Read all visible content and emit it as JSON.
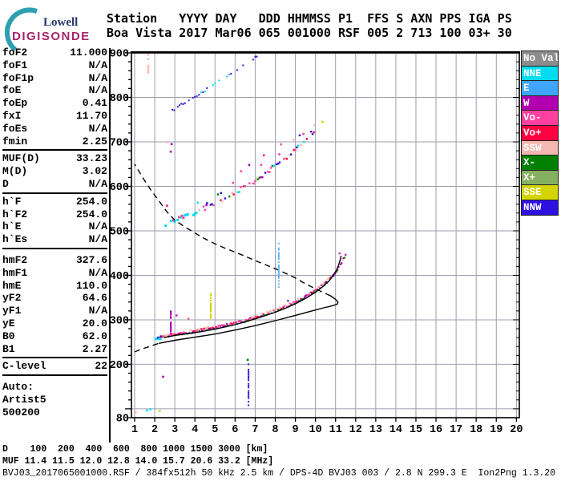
{
  "logo": {
    "line1": "Lowell",
    "line2": "DIGISONDE",
    "arc_color": "#2e9fb0"
  },
  "header": {
    "line1": "Station   YYYY DAY   DDD HHMMSS P1  FFS S AXN PPS IGA PS",
    "line2": "Boa Vista 2017 Mar06 065 001000 RSF 005 2 713 100 03+ 30"
  },
  "panel": {
    "groups": [
      {
        "rows": [
          [
            "foF2",
            "11.000"
          ],
          [
            "foF1",
            "N/A"
          ],
          [
            "foF1p",
            "N/A"
          ],
          [
            "foE",
            "N/A"
          ],
          [
            "foEp",
            "0.41"
          ],
          [
            "fxI",
            "11.70"
          ],
          [
            "foEs",
            "N/A"
          ],
          [
            "fmin",
            "2.25"
          ]
        ]
      },
      {
        "rows": [
          [
            "MUF(D)",
            "33.23"
          ],
          [
            "M(D)",
            "3.02"
          ],
          [
            "D",
            "N/A"
          ]
        ]
      },
      {
        "rows": [
          [
            "h`F",
            "254.0"
          ],
          [
            "h`F2",
            "254.0"
          ],
          [
            "h`E",
            "N/A"
          ],
          [
            "h`Es",
            "N/A"
          ]
        ]
      },
      {
        "rows": [
          [
            "hmF2",
            "327.6"
          ],
          [
            "hmF1",
            "N/A"
          ],
          [
            "hmE",
            "110.0"
          ],
          [
            "yF2",
            "64.6"
          ],
          [
            "yF1",
            "N/A"
          ],
          [
            "yE",
            "20.0"
          ],
          [
            "B0",
            "62.0"
          ],
          [
            "B1",
            "2.27"
          ]
        ]
      },
      {
        "rows": [
          [
            "C-level",
            "22"
          ]
        ]
      }
    ],
    "footer": [
      "Auto:",
      "Artist5",
      "500200"
    ]
  },
  "legend": {
    "items": [
      {
        "label": "No Val",
        "color": "#8c8c8c"
      },
      {
        "label": "NNE",
        "color": "#00dcf0"
      },
      {
        "label": "E",
        "color": "#3fa5ff"
      },
      {
        "label": "W",
        "color": "#b000b0"
      },
      {
        "label": "Vo-",
        "color": "#ff40a0"
      },
      {
        "label": "Vo+",
        "color": "#ff0040"
      },
      {
        "label": "SSW",
        "color": "#f4b8b0"
      },
      {
        "label": "X-",
        "color": "#008000"
      },
      {
        "label": "X+",
        "color": "#85b060"
      },
      {
        "label": "SSE",
        "color": "#d4d400"
      },
      {
        "label": "NNW",
        "color": "#3010e0"
      }
    ]
  },
  "bottom": {
    "d_row": "D    100  200  400  600  800 1000 1500 3000 [km]",
    "muf_row": "MUF 11.4 11.5 12.0 12.8 14.0 15.7 20.6 33.2 [MHz]",
    "file_row": "BVJ03_2017065001000.RSF / 384fx512h 50 kHz 2.5 km / DPS-4D BVJ03 003 / 2.8 N 299.3 E  Ion2Png 1.3.20"
  },
  "chart_data": {
    "type": "scatter",
    "title": "Digisonde ionogram Boa Vista 2017-03-06 00:10:00",
    "xlabel": "[MHz]",
    "ylabel": "[km]",
    "xlim": [
      0.84,
      20.16
    ],
    "ylim": [
      80,
      900
    ],
    "grid_color": "#9e9eae",
    "x_ticks": [
      1,
      2,
      3,
      4,
      5,
      6,
      7,
      8,
      9,
      10,
      11,
      12,
      13,
      14,
      15,
      16,
      17,
      18,
      19,
      20
    ],
    "y_gridlines": [
      100,
      200,
      300,
      400,
      500,
      600,
      700,
      800,
      900
    ],
    "y_labels": [
      900,
      800,
      700,
      600,
      500,
      400,
      300,
      200,
      80
    ],
    "y_minor_step": 20,
    "traces": [
      {
        "name": "f-trace-1st-hop",
        "seed": 11,
        "step": 1.1,
        "size": 2.2,
        "jitter": 3.5,
        "gap": 0.06,
        "spray": 0.012,
        "segments": [
          {
            "to": 2.35,
            "palette": [
              "#00dcf0",
              "#00dcf0",
              "#3010e0"
            ],
            "size": 3
          },
          {
            "to": 10.9,
            "palette": [
              "#ff40a0",
              "#ff0040",
              "#b000b0",
              "#ff40a0",
              "#ff0040"
            ],
            "top": "#f4b8b0",
            "bottom": [
              "#008000",
              "#008000",
              "#3010e0"
            ]
          },
          {
            "to": 11.65,
            "palette": [
              "#b000b0",
              "#ff40a0",
              "#b000b0"
            ],
            "top": "#f4b8b0",
            "bottom": [
              "#008000"
            ]
          }
        ],
        "points": [
          [
            2.05,
            257
          ],
          [
            2.5,
            262
          ],
          [
            3,
            267
          ],
          [
            3.5,
            271
          ],
          [
            4,
            275
          ],
          [
            4.5,
            279
          ],
          [
            5,
            283
          ],
          [
            5.5,
            288
          ],
          [
            6,
            293
          ],
          [
            6.5,
            299
          ],
          [
            7,
            306
          ],
          [
            7.5,
            313
          ],
          [
            8,
            321
          ],
          [
            8.5,
            330
          ],
          [
            9,
            340
          ],
          [
            9.5,
            352
          ],
          [
            10,
            366
          ],
          [
            10.4,
            379
          ],
          [
            10.7,
            391
          ],
          [
            10.9,
            401
          ],
          [
            11.1,
            413
          ],
          [
            11.25,
            424
          ],
          [
            11.4,
            438
          ],
          [
            11.55,
            452
          ]
        ]
      },
      {
        "name": "f-trace-2nd-hop",
        "seed": 23,
        "step": 1.7,
        "size": 2.4,
        "jitter": 5,
        "gap": 0.3,
        "spray": 0.07,
        "segments": [
          {
            "to": 4.1,
            "palette": [
              "#00dcf0",
              "#00dcf0",
              "#00dcf0",
              "#3010e0",
              "#ff40a0"
            ],
            "size": 3
          },
          {
            "to": 10.5,
            "palette": [
              "#ff40a0",
              "#f4b8b0",
              "#ff0040",
              "#008000",
              "#3010e0",
              "#00dcf0",
              "#b000b0",
              "#ff40a0"
            ]
          }
        ],
        "points": [
          [
            2.42,
            511
          ],
          [
            3,
            523
          ],
          [
            3.5,
            532
          ],
          [
            4,
            541
          ],
          [
            4.5,
            551
          ],
          [
            5,
            562
          ],
          [
            5.5,
            573
          ],
          [
            6,
            585
          ],
          [
            6.5,
            599
          ],
          [
            7,
            613
          ],
          [
            7.5,
            629
          ],
          [
            8,
            646
          ],
          [
            8.5,
            664
          ],
          [
            9,
            684
          ],
          [
            9.5,
            705
          ],
          [
            10,
            728
          ]
        ]
      },
      {
        "name": "f-trace-3rd-hop",
        "seed": 37,
        "step": 2.3,
        "size": 2,
        "jitter": 2.5,
        "gap": 0.42,
        "spray": 0,
        "segments": [
          {
            "to": 4.2,
            "palette": [
              "#3010e0",
              "#3010e0",
              "#2233ee"
            ]
          },
          {
            "to": 5.8,
            "palette": [
              "#3010e0",
              "#00dcf0",
              "#00dcf0",
              "#3fa5ff"
            ]
          },
          {
            "to": 7.4,
            "palette": [
              "#3010e0",
              "#3010e0",
              "#3fa5ff"
            ]
          }
        ],
        "points": [
          [
            2.88,
            770
          ],
          [
            3.5,
            789
          ],
          [
            4,
            802
          ],
          [
            4.5,
            816
          ],
          [
            5,
            830
          ],
          [
            5.5,
            844
          ],
          [
            6,
            859
          ],
          [
            6.5,
            874
          ],
          [
            7,
            890
          ],
          [
            7.25,
            899
          ]
        ]
      }
    ],
    "curves": [
      {
        "name": "profile-bottomside-extrapolated",
        "style": "dashed",
        "points": [
          [
            1.0,
            228
          ],
          [
            1.4,
            235
          ],
          [
            1.8,
            241
          ],
          [
            2.2,
            247
          ]
        ]
      },
      {
        "name": "profile-bottomside",
        "style": "solid",
        "points": [
          [
            2.2,
            247
          ],
          [
            3,
            254
          ],
          [
            4,
            261
          ],
          [
            5,
            268
          ],
          [
            6,
            277
          ],
          [
            7,
            287
          ],
          [
            8,
            298
          ],
          [
            9,
            310
          ],
          [
            9.5,
            316
          ],
          [
            10,
            322
          ],
          [
            10.4,
            327
          ],
          [
            10.7,
            330
          ],
          [
            10.95,
            333
          ],
          [
            11.1,
            336
          ],
          [
            11.12,
            340
          ],
          [
            11.0,
            346
          ],
          [
            10.85,
            351
          ],
          [
            10.75,
            354
          ]
        ]
      },
      {
        "name": "profile-topside-extrapolated",
        "style": "dashed",
        "points": [
          [
            10.75,
            354
          ],
          [
            10.4,
            361
          ],
          [
            10,
            370
          ],
          [
            9.5,
            381
          ],
          [
            9,
            394
          ],
          [
            8.5,
            405
          ],
          [
            8,
            415
          ],
          [
            7.5,
            424
          ],
          [
            7,
            433
          ],
          [
            6.5,
            443
          ],
          [
            6,
            452
          ],
          [
            5.5,
            461
          ],
          [
            5,
            471
          ],
          [
            4.5,
            482
          ],
          [
            4,
            495
          ],
          [
            3.5,
            509
          ],
          [
            3,
            524
          ],
          [
            2.6,
            543
          ],
          [
            2.2,
            568
          ],
          [
            1.8,
            592
          ],
          [
            1.4,
            620
          ],
          [
            1.0,
            650
          ]
        ]
      },
      {
        "name": "artist-fitted-trace",
        "style": "solid",
        "points": [
          [
            2.45,
            260
          ],
          [
            3,
            265
          ],
          [
            4,
            271
          ],
          [
            5,
            279
          ],
          [
            6,
            289
          ],
          [
            7,
            302
          ],
          [
            8,
            317
          ],
          [
            8.5,
            326
          ],
          [
            9,
            336
          ],
          [
            9.5,
            348
          ],
          [
            10,
            362
          ],
          [
            10.4,
            376
          ],
          [
            10.7,
            389
          ],
          [
            10.9,
            401
          ],
          [
            11.05,
            412
          ],
          [
            11.15,
            423
          ],
          [
            11.22,
            433
          ],
          [
            11.28,
            444
          ]
        ]
      }
    ],
    "verticals": [
      {
        "name": "spread-echo-2.8MHz",
        "f": 2.8,
        "from": 264,
        "to": 323,
        "color": "#b000b0",
        "step": 2.5,
        "gap": 0.25,
        "size": 2.2,
        "seed": 51
      },
      {
        "name": "spread-echo-4.8MHz",
        "f": 4.79,
        "from": 298,
        "to": 358,
        "color": "#d4d400",
        "step": 3,
        "gap": 0.3,
        "size": 2.2,
        "seed": 52
      },
      {
        "name": "spread-echo-8.2MHz",
        "f": 8.17,
        "from": 370,
        "to": 476,
        "color": "#5ab4f0",
        "step": 3.5,
        "gap": 0.4,
        "size": 2,
        "seed": 53
      },
      {
        "name": "spread-echo-6.7MHz",
        "f": 6.67,
        "from": 104,
        "to": 206,
        "color": "#3010e0",
        "step": 4,
        "gap": 0.35,
        "size": 2,
        "seed": 54
      },
      {
        "name": "spread-echo-1.7MHz-top",
        "f": 1.68,
        "from": 856,
        "to": 898,
        "color": "#f4b8b0",
        "step": 5,
        "gap": 0.4,
        "size": 2.5,
        "seed": 55
      }
    ],
    "stray_dots": [
      [
        1.05,
        92,
        "#f4b8b0"
      ],
      [
        1.62,
        96,
        "#00dcf0"
      ],
      [
        1.78,
        99,
        "#00dcf0"
      ],
      [
        2.25,
        95,
        "#d4d400"
      ],
      [
        2.42,
        172,
        "#b000b0"
      ],
      [
        2.8,
        678,
        "#b000b0"
      ],
      [
        2.84,
        695,
        "#b000b0"
      ],
      [
        6.63,
        210,
        "#008000"
      ],
      [
        10.35,
        745,
        "#d4d400"
      ],
      [
        9.95,
        737,
        "#f4b8b0"
      ],
      [
        5.9,
        608,
        "#ff40a0"
      ],
      [
        6.3,
        634,
        "#ff40a0"
      ],
      [
        6.7,
        648,
        "#b000b0"
      ],
      [
        7.3,
        648,
        "#ff40a0"
      ],
      [
        8.2,
        672,
        "#ff40a0"
      ],
      [
        8.9,
        705,
        "#f4b8b0"
      ],
      [
        9.4,
        718,
        "#ff40a0"
      ],
      [
        2.6,
        700,
        "#f4b8b0"
      ],
      [
        5.3,
        585,
        "#3010e0"
      ],
      [
        4.6,
        562,
        "#3010e0"
      ]
    ]
  }
}
